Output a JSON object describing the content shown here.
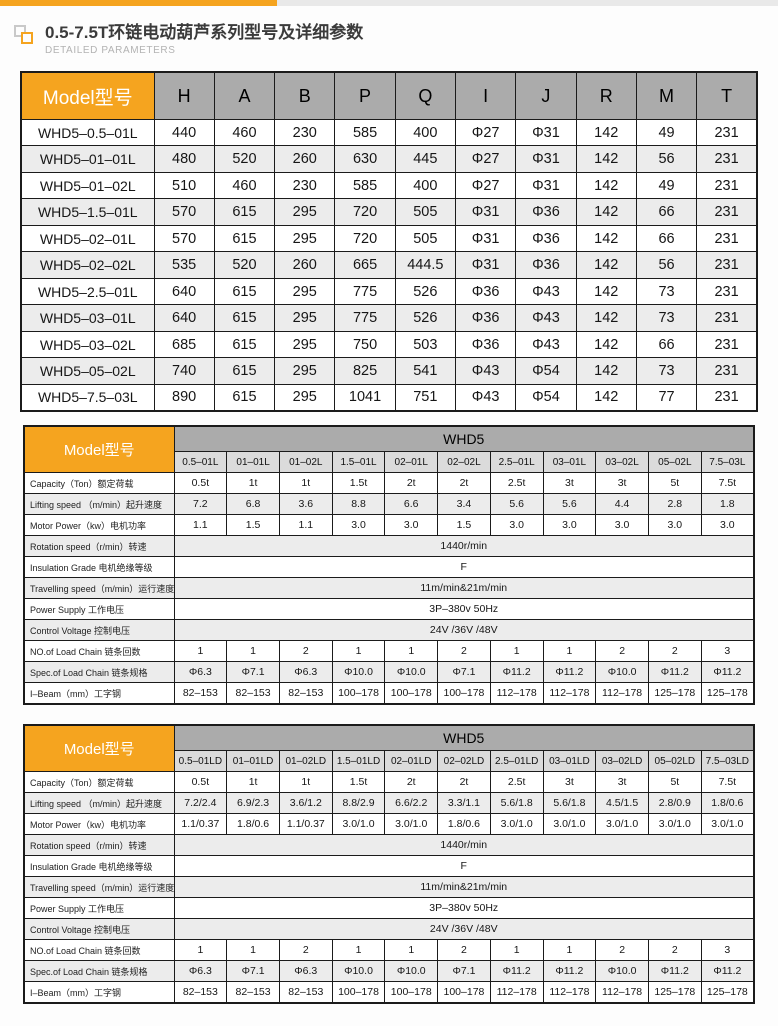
{
  "page": {
    "title": "0.5-7.5T环链电动葫芦系列型号及详细参数",
    "subtitle": "DETAILED PARAMETERS"
  },
  "colors": {
    "accent": "#F5A41F",
    "header_gray": "#ABABAB",
    "subheader_gray": "#DBDBDB",
    "alt_row": "#ECECEC"
  },
  "dim_table": {
    "corner_label": "Model型号",
    "columns": [
      "H",
      "A",
      "B",
      "P",
      "Q",
      "I",
      "J",
      "R",
      "M",
      "T"
    ],
    "rows": [
      {
        "model": "WHD5–0.5–01L",
        "values": [
          "440",
          "460",
          "230",
          "585",
          "400",
          "Φ27",
          "Φ31",
          "142",
          "49",
          "231"
        ]
      },
      {
        "model": "WHD5–01–01L",
        "values": [
          "480",
          "520",
          "260",
          "630",
          "445",
          "Φ27",
          "Φ31",
          "142",
          "56",
          "231"
        ]
      },
      {
        "model": "WHD5–01–02L",
        "values": [
          "510",
          "460",
          "230",
          "585",
          "400",
          "Φ27",
          "Φ31",
          "142",
          "49",
          "231"
        ]
      },
      {
        "model": "WHD5–1.5–01L",
        "values": [
          "570",
          "615",
          "295",
          "720",
          "505",
          "Φ31",
          "Φ36",
          "142",
          "66",
          "231"
        ]
      },
      {
        "model": "WHD5–02–01L",
        "values": [
          "570",
          "615",
          "295",
          "720",
          "505",
          "Φ31",
          "Φ36",
          "142",
          "66",
          "231"
        ]
      },
      {
        "model": "WHD5–02–02L",
        "values": [
          "535",
          "520",
          "260",
          "665",
          "444.5",
          "Φ31",
          "Φ36",
          "142",
          "56",
          "231"
        ]
      },
      {
        "model": "WHD5–2.5–01L",
        "values": [
          "640",
          "615",
          "295",
          "775",
          "526",
          "Φ36",
          "Φ43",
          "142",
          "73",
          "231"
        ]
      },
      {
        "model": "WHD5–03–01L",
        "values": [
          "640",
          "615",
          "295",
          "775",
          "526",
          "Φ36",
          "Φ43",
          "142",
          "73",
          "231"
        ]
      },
      {
        "model": "WHD5–03–02L",
        "values": [
          "685",
          "615",
          "295",
          "750",
          "503",
          "Φ36",
          "Φ43",
          "142",
          "66",
          "231"
        ]
      },
      {
        "model": "WHD5–05–02L",
        "values": [
          "740",
          "615",
          "295",
          "825",
          "541",
          "Φ43",
          "Φ54",
          "142",
          "73",
          "231"
        ]
      },
      {
        "model": "WHD5–7.5–03L",
        "values": [
          "890",
          "615",
          "295",
          "1041",
          "751",
          "Φ43",
          "Φ54",
          "142",
          "77",
          "231"
        ]
      }
    ]
  },
  "spec_table_l": {
    "corner_label": "Model型号",
    "group_header": "WHD5",
    "columns": [
      "0.5–01L",
      "01–01L",
      "01–02L",
      "1.5–01L",
      "02–01L",
      "02–02L",
      "2.5–01L",
      "03–01L",
      "03–02L",
      "05–02L",
      "7.5–03L"
    ],
    "rows": [
      {
        "label": "Capacity（Ton）额定荷载",
        "values": [
          "0.5t",
          "1t",
          "1t",
          "1.5t",
          "2t",
          "2t",
          "2.5t",
          "3t",
          "3t",
          "5t",
          "7.5t"
        ]
      },
      {
        "label": "Lifting speed （m/min）起升速度",
        "values": [
          "7.2",
          "6.8",
          "3.6",
          "8.8",
          "6.6",
          "3.4",
          "5.6",
          "5.6",
          "4.4",
          "2.8",
          "1.8"
        ]
      },
      {
        "label": "Motor Power（kw）电机功率",
        "values": [
          "1.1",
          "1.5",
          "1.1",
          "3.0",
          "3.0",
          "1.5",
          "3.0",
          "3.0",
          "3.0",
          "3.0",
          "3.0"
        ]
      },
      {
        "label": "Rotation speed（r/min）转速",
        "span": "1440r/min"
      },
      {
        "label": "Insulation Grade 电机绝缘等级",
        "span": "F"
      },
      {
        "label": "Travelling speed（m/min）运行速度",
        "span": "11m/min&21m/min"
      },
      {
        "label": "Power Supply 工作电压",
        "span": "3P–380v 50Hz"
      },
      {
        "label": "Control Voltage 控制电压",
        "span": "24V /36V /48V"
      },
      {
        "label": "NO.of Load Chain 链条回数",
        "values": [
          "1",
          "1",
          "2",
          "1",
          "1",
          "2",
          "1",
          "1",
          "2",
          "2",
          "3"
        ]
      },
      {
        "label": "Spec.of Load Chain 链条规格",
        "values": [
          "Φ6.3",
          "Φ7.1",
          "Φ6.3",
          "Φ10.0",
          "Φ10.0",
          "Φ7.1",
          "Φ11.2",
          "Φ11.2",
          "Φ10.0",
          "Φ11.2",
          "Φ11.2"
        ]
      },
      {
        "label": "I–Beam（mm）工字钢",
        "values": [
          "82–153",
          "82–153",
          "82–153",
          "100–178",
          "100–178",
          "100–178",
          "112–178",
          "112–178",
          "112–178",
          "125–178",
          "125–178"
        ]
      }
    ]
  },
  "spec_table_ld": {
    "corner_label": "Model型号",
    "group_header": "WHD5",
    "columns": [
      "0.5–01LD",
      "01–01LD",
      "01–02LD",
      "1.5–01LD",
      "02–01LD",
      "02–02LD",
      "2.5–01LD",
      "03–01LD",
      "03–02LD",
      "05–02LD",
      "7.5–03LD"
    ],
    "rows": [
      {
        "label": "Capacity（Ton）额定荷载",
        "values": [
          "0.5t",
          "1t",
          "1t",
          "1.5t",
          "2t",
          "2t",
          "2.5t",
          "3t",
          "3t",
          "5t",
          "7.5t"
        ]
      },
      {
        "label": "Lifting speed （m/min）起升速度",
        "values": [
          "7.2/2.4",
          "6.9/2.3",
          "3.6/1.2",
          "8.8/2.9",
          "6.6/2.2",
          "3.3/1.1",
          "5.6/1.8",
          "5.6/1.8",
          "4.5/1.5",
          "2.8/0.9",
          "1.8/0.6"
        ]
      },
      {
        "label": "Motor Power（kw）电机功率",
        "values": [
          "1.1/0.37",
          "1.8/0.6",
          "1.1/0.37",
          "3.0/1.0",
          "3.0/1.0",
          "1.8/0.6",
          "3.0/1.0",
          "3.0/1.0",
          "3.0/1.0",
          "3.0/1.0",
          "3.0/1.0"
        ]
      },
      {
        "label": "Rotation speed（r/min）转速",
        "span": "1440r/min"
      },
      {
        "label": "Insulation Grade 电机绝缘等级",
        "span": "F"
      },
      {
        "label": "Travelling speed（m/min）运行速度",
        "span": "11m/min&21m/min"
      },
      {
        "label": "Power Supply 工作电压",
        "span": "3P–380v 50Hz"
      },
      {
        "label": "Control Voltage 控制电压",
        "span": "24V /36V /48V"
      },
      {
        "label": "NO.of Load Chain 链条回数",
        "values": [
          "1",
          "1",
          "2",
          "1",
          "1",
          "2",
          "1",
          "1",
          "2",
          "2",
          "3"
        ]
      },
      {
        "label": "Spec.of Load Chain 链条规格",
        "values": [
          "Φ6.3",
          "Φ7.1",
          "Φ6.3",
          "Φ10.0",
          "Φ10.0",
          "Φ7.1",
          "Φ11.2",
          "Φ11.2",
          "Φ10.0",
          "Φ11.2",
          "Φ11.2"
        ]
      },
      {
        "label": "I–Beam（mm）工字钢",
        "values": [
          "82–153",
          "82–153",
          "82–153",
          "100–178",
          "100–178",
          "100–178",
          "112–178",
          "112–178",
          "112–178",
          "125–178",
          "125–178"
        ]
      }
    ]
  }
}
